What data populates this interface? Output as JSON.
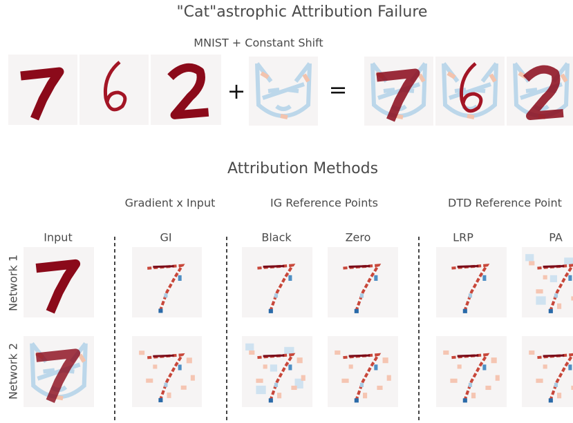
{
  "header": {
    "title": "\"Cat\"astrophic Attribution Failure",
    "subtitle": "MNIST + Constant Shift",
    "plus": "+",
    "equals": "="
  },
  "methods": {
    "title": "Attribution Methods",
    "groups": [
      "Gradient x Input",
      "IG Reference Points",
      "DTD Reference Point"
    ],
    "columns": [
      "Input",
      "GI",
      "Black",
      "Zero",
      "LRP",
      "PA"
    ],
    "rows": [
      "Network 1",
      "Network 2"
    ]
  }
}
